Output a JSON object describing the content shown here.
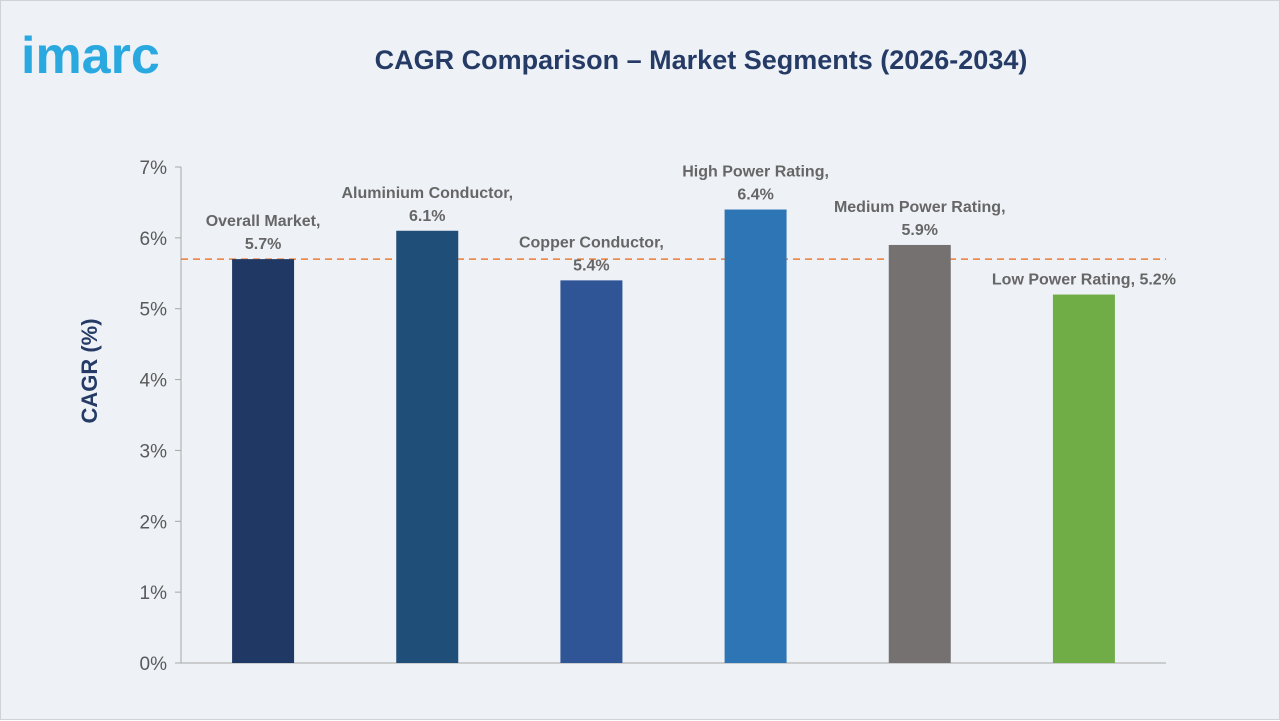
{
  "brand": {
    "logo_text": "imarc",
    "logo_color": "#2aa8e0"
  },
  "chart_data": {
    "type": "bar",
    "title": "CAGR Comparison – Market Segments (2026-2034)",
    "xlabel": "",
    "ylabel": "CAGR (%)",
    "ylim": [
      0,
      7
    ],
    "yticks": [
      "0%",
      "1%",
      "2%",
      "3%",
      "4%",
      "5%",
      "6%",
      "7%"
    ],
    "grid": false,
    "categories": [
      "Overall Market",
      "Aluminium Conductor",
      "Copper Conductor",
      "High Power Rating",
      "Medium Power Rating",
      "Low Power Rating"
    ],
    "values": [
      5.7,
      6.1,
      5.4,
      6.4,
      5.9,
      5.2
    ],
    "data_labels": [
      [
        "Overall Market,",
        "5.7%"
      ],
      [
        "Aluminium Conductor,",
        "6.1%"
      ],
      [
        "Copper Conductor,",
        "5.4%"
      ],
      [
        "High Power Rating,",
        "6.4%"
      ],
      [
        "Medium Power Rating,",
        "5.9%"
      ],
      [
        "Low Power Rating, 5.2%"
      ]
    ],
    "colors": [
      "#203864",
      "#1f4e79",
      "#2f5597",
      "#2e75b6",
      "#767171",
      "#70ad47"
    ],
    "reference_line": {
      "value": 5.7,
      "color": "#ed7d31",
      "style": "dashed"
    }
  }
}
